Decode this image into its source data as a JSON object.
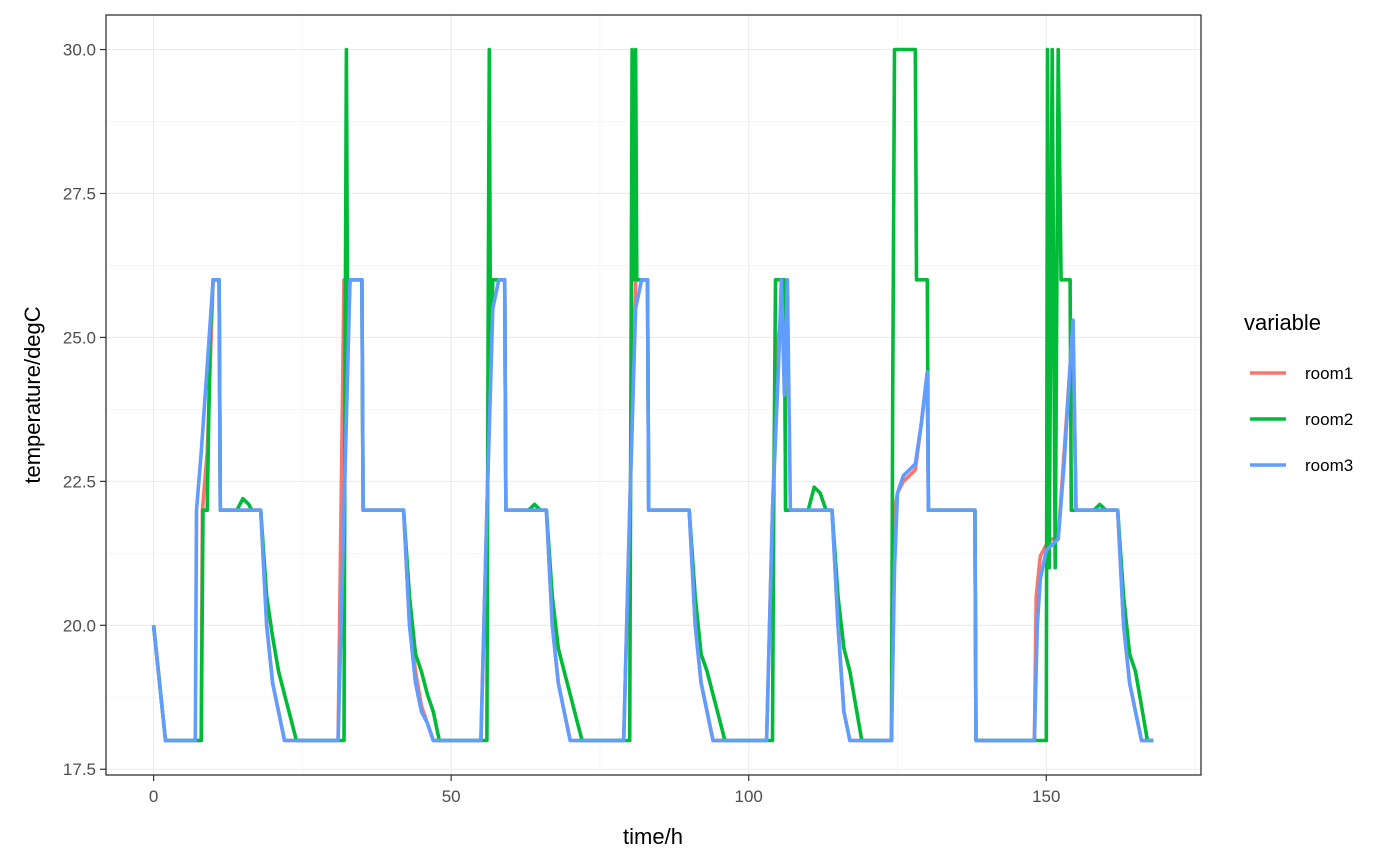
{
  "chart_data": {
    "type": "line",
    "xlabel": "time/h",
    "ylabel": "temperature/degC",
    "xlim": [
      -8,
      176
    ],
    "ylim": [
      17.4,
      30.6
    ],
    "x_ticks": [
      0,
      50,
      100,
      150
    ],
    "x_tick_labels": [
      "0",
      "50",
      "100",
      "150"
    ],
    "y_ticks": [
      17.5,
      20.0,
      22.5,
      25.0,
      27.5,
      30.0
    ],
    "y_tick_labels": [
      "17.5",
      "20.0",
      "22.5",
      "25.0",
      "27.5",
      "30.0"
    ],
    "grid": true,
    "legend": {
      "title": "variable",
      "placement": "right"
    },
    "series": [
      {
        "name": "room1",
        "color": "#F8766D",
        "points": [
          [
            0,
            20
          ],
          [
            2,
            18
          ],
          [
            8,
            18
          ],
          [
            8.2,
            22
          ],
          [
            9,
            23
          ],
          [
            10,
            26
          ],
          [
            11,
            26
          ],
          [
            11.2,
            22
          ],
          [
            18,
            22
          ],
          [
            19,
            20
          ],
          [
            20,
            19
          ],
          [
            21,
            18.5
          ],
          [
            22,
            18
          ],
          [
            31,
            18
          ],
          [
            32,
            26
          ],
          [
            33,
            26
          ],
          [
            34,
            26
          ],
          [
            35,
            26
          ],
          [
            35.2,
            22
          ],
          [
            42,
            22
          ],
          [
            43,
            20
          ],
          [
            44,
            19.2
          ],
          [
            45,
            18.6
          ],
          [
            47,
            18
          ],
          [
            55,
            18
          ],
          [
            56,
            22
          ],
          [
            57,
            26
          ],
          [
            59,
            26
          ],
          [
            59.2,
            22
          ],
          [
            66,
            22
          ],
          [
            67,
            20
          ],
          [
            68,
            19
          ],
          [
            69,
            18.5
          ],
          [
            70,
            18
          ],
          [
            79,
            18
          ],
          [
            80,
            22
          ],
          [
            81,
            26
          ],
          [
            83,
            26
          ],
          [
            83.2,
            22
          ],
          [
            90,
            22
          ],
          [
            91,
            20
          ],
          [
            92,
            19
          ],
          [
            93,
            18.5
          ],
          [
            94,
            18
          ],
          [
            103,
            18
          ],
          [
            104,
            22
          ],
          [
            105,
            25
          ],
          [
            106,
            26
          ],
          [
            106.2,
            22
          ],
          [
            114,
            22
          ],
          [
            115,
            20
          ],
          [
            116,
            18.5
          ],
          [
            117,
            18
          ],
          [
            124,
            18
          ],
          [
            124.2,
            20.5
          ],
          [
            124.5,
            22
          ],
          [
            125,
            22.3
          ],
          [
            126,
            22.5
          ],
          [
            127,
            22.6
          ],
          [
            128,
            22.7
          ],
          [
            129,
            23.5
          ],
          [
            130,
            24.4
          ],
          [
            130.2,
            22
          ],
          [
            138,
            22
          ],
          [
            138.2,
            18
          ],
          [
            148,
            18
          ],
          [
            148.3,
            20.5
          ],
          [
            149,
            21.2
          ],
          [
            150,
            21.4
          ],
          [
            151,
            21.5
          ],
          [
            152,
            21.5
          ],
          [
            153,
            23
          ],
          [
            154,
            24.5
          ],
          [
            154.5,
            25
          ],
          [
            155,
            22
          ],
          [
            162,
            22
          ],
          [
            163,
            20
          ],
          [
            164,
            19
          ],
          [
            165,
            18.5
          ],
          [
            166,
            18
          ],
          [
            168,
            18
          ]
        ]
      },
      {
        "name": "room2",
        "color": "#00BA38",
        "points": [
          [
            0,
            20
          ],
          [
            2,
            18
          ],
          [
            8,
            18
          ],
          [
            8.3,
            22
          ],
          [
            9,
            22
          ],
          [
            9.5,
            25
          ],
          [
            10,
            26
          ],
          [
            11,
            26
          ],
          [
            11.2,
            22
          ],
          [
            14,
            22
          ],
          [
            15,
            22.2
          ],
          [
            16,
            22.1
          ],
          [
            16.5,
            22
          ],
          [
            18,
            22
          ],
          [
            19,
            20.5
          ],
          [
            20,
            19.8
          ],
          [
            21,
            19.2
          ],
          [
            22,
            18.8
          ],
          [
            23,
            18.4
          ],
          [
            24,
            18
          ],
          [
            32,
            18
          ],
          [
            32.2,
            25
          ],
          [
            32.4,
            30
          ],
          [
            32.6,
            25
          ],
          [
            33,
            26
          ],
          [
            35,
            26
          ],
          [
            35.2,
            22
          ],
          [
            42,
            22
          ],
          [
            43,
            20.5
          ],
          [
            44,
            19.5
          ],
          [
            45,
            19.2
          ],
          [
            46,
            18.8
          ],
          [
            47,
            18.5
          ],
          [
            48,
            18
          ],
          [
            56,
            18
          ],
          [
            56.2,
            25
          ],
          [
            56.4,
            30
          ],
          [
            56.6,
            25
          ],
          [
            57,
            26
          ],
          [
            59,
            26
          ],
          [
            59.2,
            22
          ],
          [
            63,
            22
          ],
          [
            64,
            22.1
          ],
          [
            65,
            22
          ],
          [
            66,
            22
          ],
          [
            67,
            20.5
          ],
          [
            68,
            19.6
          ],
          [
            69,
            19.2
          ],
          [
            70,
            18.8
          ],
          [
            71,
            18.4
          ],
          [
            72,
            18
          ],
          [
            80,
            18
          ],
          [
            80.2,
            24
          ],
          [
            80.4,
            30
          ],
          [
            80.6,
            26
          ],
          [
            81,
            30
          ],
          [
            81.2,
            26
          ],
          [
            83,
            26
          ],
          [
            83.2,
            22
          ],
          [
            90,
            22
          ],
          [
            91,
            20.5
          ],
          [
            92,
            19.5
          ],
          [
            93,
            19.2
          ],
          [
            94,
            18.8
          ],
          [
            95,
            18.4
          ],
          [
            96,
            18
          ],
          [
            104,
            18
          ],
          [
            104.2,
            22
          ],
          [
            104.5,
            26
          ],
          [
            106,
            26
          ],
          [
            106.2,
            22
          ],
          [
            110,
            22
          ],
          [
            111,
            22.4
          ],
          [
            112,
            22.3
          ],
          [
            113,
            22
          ],
          [
            114,
            22
          ],
          [
            115,
            20.5
          ],
          [
            116,
            19.6
          ],
          [
            117,
            19.2
          ],
          [
            118,
            18.6
          ],
          [
            119,
            18
          ],
          [
            124,
            18
          ],
          [
            124.2,
            24
          ],
          [
            124.5,
            30
          ],
          [
            126,
            30
          ],
          [
            127,
            30
          ],
          [
            128,
            30
          ],
          [
            128.2,
            26
          ],
          [
            130,
            26
          ],
          [
            130.2,
            22
          ],
          [
            138,
            22
          ],
          [
            138.2,
            18
          ],
          [
            150,
            18
          ],
          [
            150.2,
            30
          ],
          [
            150.5,
            21
          ],
          [
            151,
            30
          ],
          [
            151.5,
            21
          ],
          [
            152,
            30
          ],
          [
            152.5,
            26
          ],
          [
            154,
            26
          ],
          [
            154.2,
            22
          ],
          [
            158,
            22
          ],
          [
            159,
            22.1
          ],
          [
            160,
            22
          ],
          [
            162,
            22
          ],
          [
            163,
            20.5
          ],
          [
            164,
            19.5
          ],
          [
            165,
            19.2
          ],
          [
            166,
            18.6
          ],
          [
            167,
            18
          ],
          [
            168,
            18
          ]
        ]
      },
      {
        "name": "room3",
        "color": "#619CFF",
        "points": [
          [
            0,
            20
          ],
          [
            2,
            18
          ],
          [
            7,
            18
          ],
          [
            7.2,
            22
          ],
          [
            8,
            23
          ],
          [
            9,
            24.5
          ],
          [
            10,
            26
          ],
          [
            11,
            26
          ],
          [
            11.2,
            22
          ],
          [
            18,
            22
          ],
          [
            19,
            20
          ],
          [
            20,
            19
          ],
          [
            21,
            18.5
          ],
          [
            22,
            18
          ],
          [
            31,
            18
          ],
          [
            32,
            22
          ],
          [
            33,
            26
          ],
          [
            35,
            26
          ],
          [
            35.2,
            22
          ],
          [
            42,
            22
          ],
          [
            43,
            20
          ],
          [
            44,
            19
          ],
          [
            45,
            18.5
          ],
          [
            46,
            18.3
          ],
          [
            47,
            18
          ],
          [
            55,
            18
          ],
          [
            56,
            22
          ],
          [
            57,
            25.5
          ],
          [
            58,
            26
          ],
          [
            59,
            26
          ],
          [
            59.2,
            22
          ],
          [
            66,
            22
          ],
          [
            67,
            20
          ],
          [
            68,
            19
          ],
          [
            69,
            18.5
          ],
          [
            70,
            18
          ],
          [
            79,
            18
          ],
          [
            80,
            22
          ],
          [
            81,
            25.5
          ],
          [
            82,
            26
          ],
          [
            83,
            26
          ],
          [
            83.2,
            22
          ],
          [
            90,
            22
          ],
          [
            91,
            20
          ],
          [
            92,
            19
          ],
          [
            93,
            18.5
          ],
          [
            94,
            18
          ],
          [
            103,
            18
          ],
          [
            104,
            22
          ],
          [
            105,
            24.5
          ],
          [
            105.5,
            26
          ],
          [
            106,
            24
          ],
          [
            106.5,
            26
          ],
          [
            107,
            22
          ],
          [
            114,
            22
          ],
          [
            115,
            20
          ],
          [
            116,
            18.5
          ],
          [
            117,
            18
          ],
          [
            124,
            18
          ],
          [
            124.5,
            21
          ],
          [
            125,
            22.3
          ],
          [
            126,
            22.6
          ],
          [
            127,
            22.7
          ],
          [
            128,
            22.8
          ],
          [
            129,
            23.5
          ],
          [
            130,
            24.4
          ],
          [
            130.2,
            22
          ],
          [
            138,
            22
          ],
          [
            138.2,
            18
          ],
          [
            148,
            18
          ],
          [
            148.5,
            20
          ],
          [
            149,
            20.8
          ],
          [
            150,
            21.3
          ],
          [
            151,
            21.4
          ],
          [
            152,
            21.5
          ],
          [
            153,
            22.8
          ],
          [
            154,
            24.5
          ],
          [
            154.5,
            25.3
          ],
          [
            155,
            22
          ],
          [
            162,
            22
          ],
          [
            163,
            20
          ],
          [
            164,
            19
          ],
          [
            165,
            18.5
          ],
          [
            166,
            18
          ],
          [
            168,
            18
          ]
        ]
      }
    ]
  }
}
